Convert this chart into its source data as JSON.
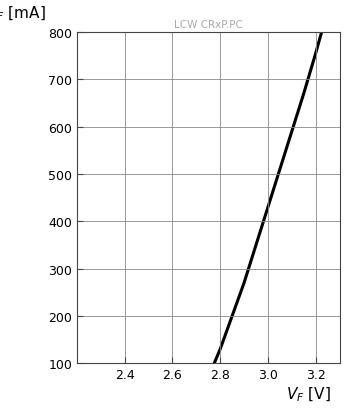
{
  "title": "LCW CRxP.PC",
  "title_color": "#aaaaaa",
  "xlabel": "$V_F$ [V]",
  "ylabel": "$I_F$ [mA]",
  "xlim": [
    2.2,
    3.3
  ],
  "ylim": [
    100,
    800
  ],
  "xticks": [
    2.4,
    2.6,
    2.8,
    3.0,
    3.2
  ],
  "yticks": [
    100,
    200,
    300,
    400,
    500,
    600,
    700,
    800
  ],
  "curve_color": "#000000",
  "curve_linewidth": 2.2,
  "grid_color": "#888888",
  "background_color": "#ffffff",
  "curve_x": [
    2.775,
    2.8,
    2.85,
    2.9,
    2.95,
    3.0,
    3.05,
    3.1,
    3.15,
    3.2,
    3.225
  ],
  "curve_y": [
    100,
    130,
    200,
    270,
    350,
    430,
    510,
    590,
    670,
    755,
    800
  ]
}
